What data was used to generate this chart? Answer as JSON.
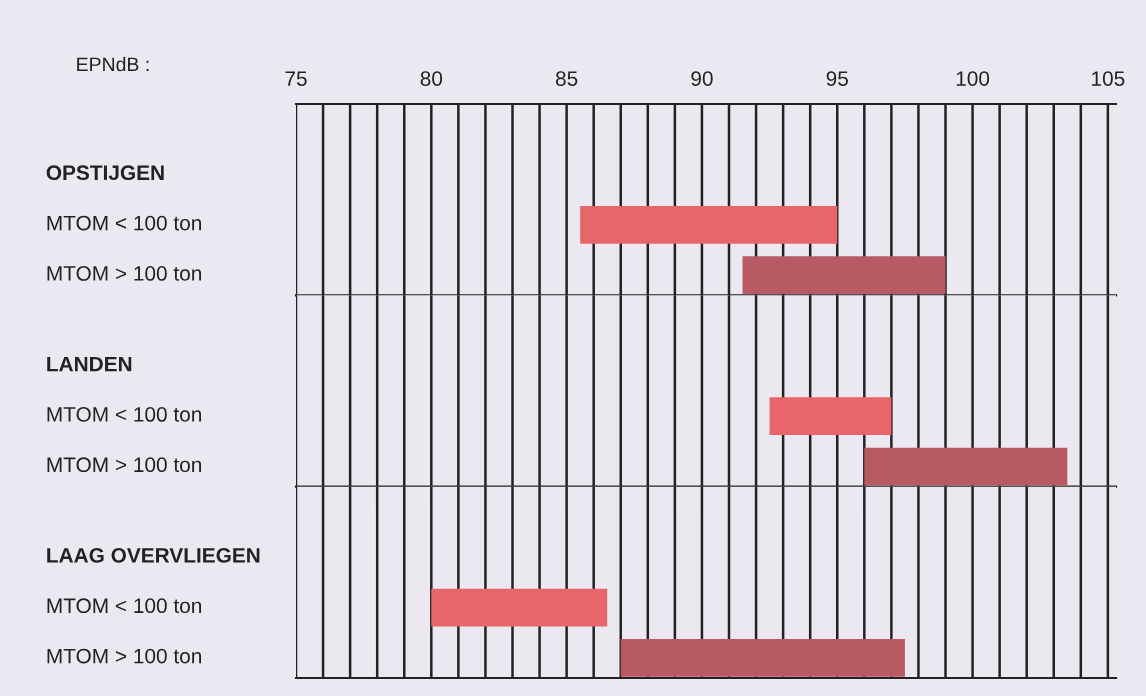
{
  "chart_data": [
    {
      "type": "bar",
      "orientation": "horizontal",
      "xlabel": "EPNdB :",
      "categories": [
        "OPSTIJGEN",
        "MTOM < 100 ton",
        "MTOM > 100 ton"
      ],
      "values": [
        null,
        9.5,
        7.5
      ],
      "base": [
        null,
        85.5,
        91.5
      ],
      "colors": [
        null,
        "#e8666a",
        "#b85a64"
      ],
      "xlim": [
        75,
        105.3
      ],
      "xticks": [
        75,
        {
          "value": 76,
          "label": null
        },
        {
          "value": 77,
          "label": null
        },
        {
          "value": 78,
          "label": null
        },
        {
          "value": 79,
          "label": null
        },
        80,
        {
          "value": 81,
          "label": null
        },
        {
          "value": 82,
          "label": null
        },
        {
          "value": 83,
          "label": null
        },
        {
          "value": 84,
          "label": null
        },
        85,
        {
          "value": 86,
          "label": null
        },
        {
          "value": 87,
          "label": null
        },
        {
          "value": 88,
          "label": null
        },
        {
          "value": 89,
          "label": null
        },
        90,
        {
          "value": 91,
          "label": null
        },
        {
          "value": 92,
          "label": null
        },
        {
          "value": 93,
          "label": null
        },
        {
          "value": 94,
          "label": null
        },
        95,
        {
          "value": 96,
          "label": null
        },
        {
          "value": 97,
          "label": null
        },
        {
          "value": 98,
          "label": null
        },
        {
          "value": 99,
          "label": null
        },
        100,
        {
          "value": 101,
          "label": null
        },
        {
          "value": 102,
          "label": null
        },
        {
          "value": 103,
          "label": null
        },
        {
          "value": 104,
          "label": null
        },
        105
      ],
      "grid": "x"
    },
    {
      "type": "bar",
      "orientation": "horizontal",
      "categories": [
        "LANDEN",
        "MTOM < 100 ton",
        "MTOM > 100 ton"
      ],
      "values": [
        null,
        4.5,
        7.5
      ],
      "base": [
        null,
        92.5,
        96
      ],
      "colors": [
        null,
        "#e8666a",
        "#b85a64"
      ],
      "xlim": [
        75,
        105.3
      ],
      "xticks": [
        75,
        {
          "value": 76,
          "label": null
        },
        {
          "value": 77,
          "label": null
        },
        {
          "value": 78,
          "label": null
        },
        {
          "value": 79,
          "label": null
        },
        80,
        {
          "value": 81,
          "label": null
        },
        {
          "value": 82,
          "label": null
        },
        {
          "value": 83,
          "label": null
        },
        {
          "value": 84,
          "label": null
        },
        85,
        {
          "value": 86,
          "label": null
        },
        {
          "value": 87,
          "label": null
        },
        {
          "value": 88,
          "label": null
        },
        {
          "value": 89,
          "label": null
        },
        90,
        {
          "value": 91,
          "label": null
        },
        {
          "value": 92,
          "label": null
        },
        {
          "value": 93,
          "label": null
        },
        {
          "value": 94,
          "label": null
        },
        95,
        {
          "value": 96,
          "label": null
        },
        {
          "value": 97,
          "label": null
        },
        {
          "value": 98,
          "label": null
        },
        {
          "value": 99,
          "label": null
        },
        100,
        {
          "value": 101,
          "label": null
        },
        {
          "value": 102,
          "label": null
        },
        {
          "value": 103,
          "label": null
        },
        {
          "value": 104,
          "label": null
        },
        105
      ],
      "grid": "x",
      "tick_labels": "y"
    },
    {
      "type": "bar",
      "orientation": "horizontal",
      "categories": [
        "LAAG OVERVLIEGEN",
        "MTOM < 100 ton",
        "MTOM > 100 ton"
      ],
      "values": [
        null,
        6.5,
        10.5
      ],
      "base": [
        null,
        80,
        87
      ],
      "colors": [
        null,
        "#e8666a",
        "#b85a64"
      ],
      "xlim": [
        75,
        105.3
      ],
      "xticks": [
        75,
        {
          "value": 76,
          "label": null
        },
        {
          "value": 77,
          "label": null
        },
        {
          "value": 78,
          "label": null
        },
        {
          "value": 79,
          "label": null
        },
        80,
        {
          "value": 81,
          "label": null
        },
        {
          "value": 82,
          "label": null
        },
        {
          "value": 83,
          "label": null
        },
        {
          "value": 84,
          "label": null
        },
        85,
        {
          "value": 86,
          "label": null
        },
        {
          "value": 87,
          "label": null
        },
        {
          "value": 88,
          "label": null
        },
        {
          "value": 89,
          "label": null
        },
        90,
        {
          "value": 91,
          "label": null
        },
        {
          "value": 92,
          "label": null
        },
        {
          "value": 93,
          "label": null
        },
        {
          "value": 94,
          "label": null
        },
        95,
        {
          "value": 96,
          "label": null
        },
        {
          "value": 97,
          "label": null
        },
        {
          "value": 98,
          "label": null
        },
        {
          "value": 99,
          "label": null
        },
        100,
        {
          "value": 101,
          "label": null
        },
        {
          "value": 102,
          "label": null
        },
        {
          "value": 103,
          "label": null
        },
        {
          "value": 104,
          "label": null
        },
        105
      ],
      "grid": "x",
      "tick_labels": "y"
    }
  ]
}
